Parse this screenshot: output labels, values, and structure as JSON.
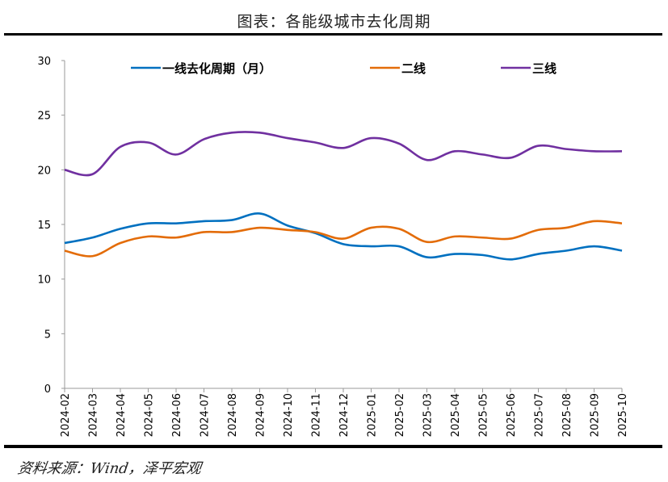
{
  "title": "图表：各能级城市去化周期",
  "source": "资料来源：Wind，泽平宏观",
  "chart_data": {
    "type": "line",
    "title": "图表：各能级城市去化周期",
    "xlabel": "",
    "ylabel": "",
    "ylim": [
      0,
      30
    ],
    "yticks": [
      0,
      5,
      10,
      15,
      20,
      25,
      30
    ],
    "grid": false,
    "legend": "top",
    "categories": [
      "2024-02",
      "2024-03",
      "2024-04",
      "2024-05",
      "2024-06",
      "2024-07",
      "2024-08",
      "2024-09",
      "2024-10",
      "2024-11",
      "2024-12",
      "2025-01",
      "2025-02",
      "2025-03",
      "2025-04",
      "2025-05",
      "2025-06",
      "2025-07",
      "2025-08",
      "2025-09",
      "2025-10"
    ],
    "series": [
      {
        "name": "一线去化周期（月）",
        "color": "#0070C0",
        "values": [
          13.3,
          13.8,
          14.6,
          15.1,
          15.1,
          15.3,
          15.4,
          16.0,
          14.9,
          14.2,
          13.2,
          13.0,
          13.0,
          12.0,
          12.3,
          12.2,
          11.8,
          12.3,
          12.6,
          13.0,
          12.6
        ]
      },
      {
        "name": "二线",
        "color": "#E36C09",
        "values": [
          12.6,
          12.1,
          13.3,
          13.9,
          13.8,
          14.3,
          14.3,
          14.7,
          14.5,
          14.3,
          13.7,
          14.7,
          14.6,
          13.4,
          13.9,
          13.8,
          13.7,
          14.5,
          14.7,
          15.3,
          15.1
        ]
      },
      {
        "name": "三线",
        "color": "#7030A0",
        "values": [
          20.0,
          19.6,
          22.1,
          22.5,
          21.4,
          22.8,
          23.4,
          23.4,
          22.9,
          22.5,
          22.0,
          22.9,
          22.4,
          20.9,
          21.7,
          21.4,
          21.1,
          22.2,
          21.9,
          21.7,
          21.7
        ]
      }
    ]
  }
}
